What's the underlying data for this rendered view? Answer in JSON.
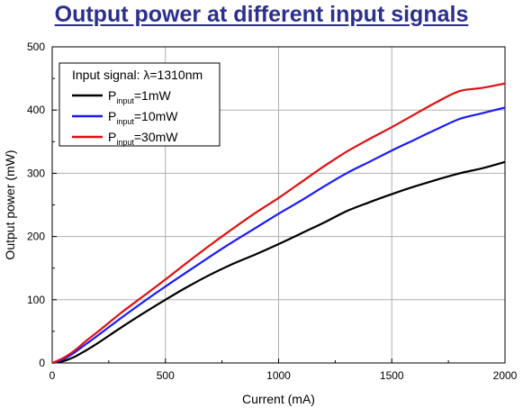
{
  "chart_data": {
    "type": "line",
    "title": "Output power at different input signals",
    "xlabel": "Current (mA)",
    "ylabel": "Output power (mW)",
    "xlim": [
      0,
      2000
    ],
    "ylim": [
      0,
      500
    ],
    "xticks": [
      0,
      500,
      1000,
      1500,
      2000
    ],
    "yticks": [
      0,
      100,
      200,
      300,
      400,
      500
    ],
    "grid": true,
    "legend_position": "top-left",
    "legend_title": "Input signal: λ=1310nm",
    "series": [
      {
        "name": "Pinput=1mW",
        "label_main": "P",
        "label_sub": "input",
        "label_rest": "=1mW",
        "color": "#000000",
        "x": [
          0,
          50,
          100,
          150,
          200,
          300,
          400,
          500,
          600,
          700,
          800,
          900,
          1000,
          1100,
          1200,
          1300,
          1400,
          1500,
          1600,
          1700,
          1800,
          1900,
          2000
        ],
        "y": [
          0,
          3,
          10,
          20,
          31,
          55,
          78,
          100,
          121,
          140,
          157,
          172,
          188,
          205,
          222,
          240,
          254,
          267,
          279,
          290,
          300,
          308,
          318
        ]
      },
      {
        "name": "Pinput=10mW",
        "label_main": "P",
        "label_sub": "input",
        "label_rest": "=10mW",
        "color": "#1a1aff",
        "x": [
          0,
          50,
          100,
          150,
          200,
          300,
          400,
          500,
          600,
          700,
          800,
          900,
          1000,
          1100,
          1200,
          1300,
          1400,
          1500,
          1600,
          1700,
          1800,
          1900,
          2000
        ],
        "y": [
          0,
          6,
          17,
          30,
          43,
          70,
          96,
          121,
          145,
          169,
          192,
          214,
          236,
          257,
          279,
          300,
          318,
          336,
          353,
          370,
          386,
          395,
          404
        ]
      },
      {
        "name": "Pinput=30mW",
        "label_main": "P",
        "label_sub": "input",
        "label_rest": "=30mW",
        "color": "#e01010",
        "x": [
          0,
          50,
          100,
          150,
          200,
          300,
          400,
          500,
          600,
          700,
          800,
          900,
          1000,
          1100,
          1200,
          1300,
          1400,
          1500,
          1600,
          1700,
          1800,
          1900,
          2000
        ],
        "y": [
          0,
          8,
          20,
          35,
          49,
          78,
          105,
          132,
          160,
          187,
          213,
          238,
          261,
          286,
          311,
          334,
          354,
          373,
          393,
          413,
          430,
          435,
          442
        ]
      }
    ]
  }
}
